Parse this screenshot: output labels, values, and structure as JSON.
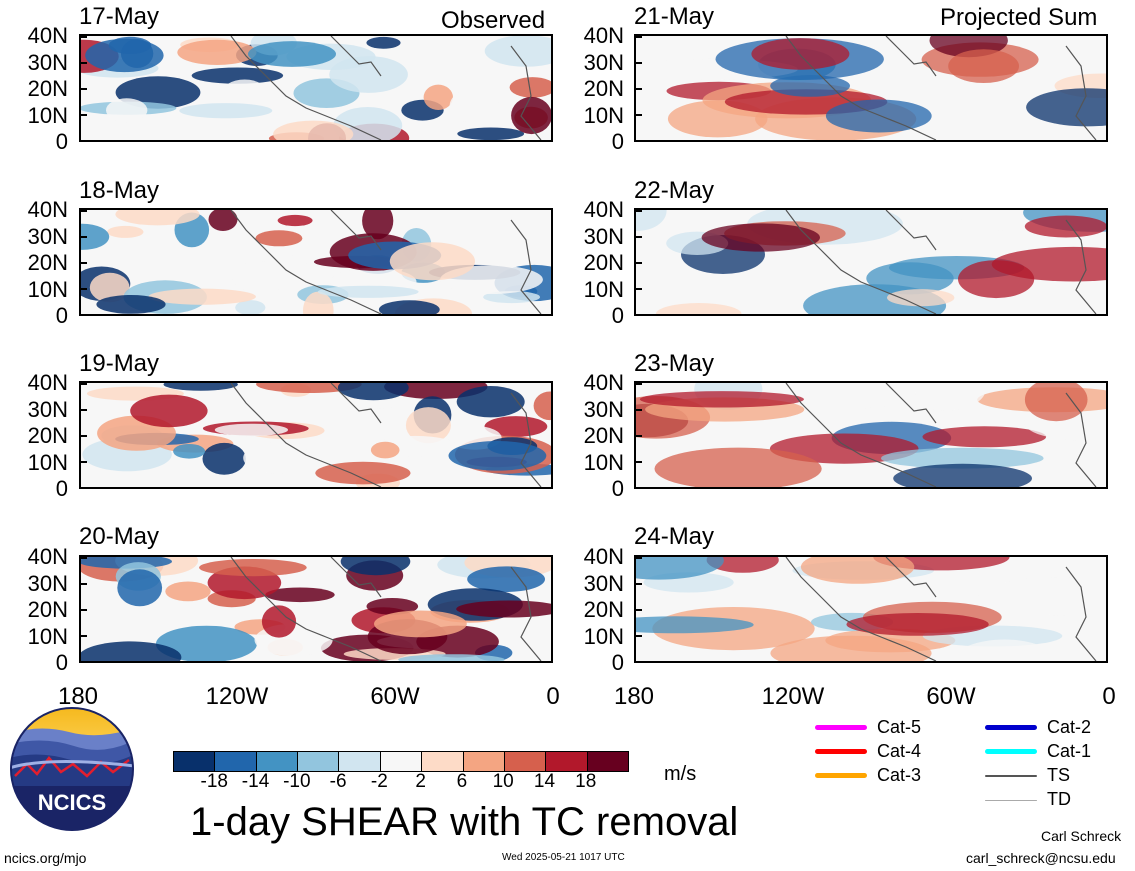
{
  "headers": {
    "left": "Observed",
    "right": "Projected Sum"
  },
  "panels_left": [
    {
      "date": "17-May"
    },
    {
      "date": "18-May"
    },
    {
      "date": "19-May"
    },
    {
      "date": "20-May"
    }
  ],
  "panels_right": [
    {
      "date": "21-May"
    },
    {
      "date": "22-May"
    },
    {
      "date": "23-May"
    },
    {
      "date": "24-May"
    }
  ],
  "lat_labels": [
    "40N",
    "30N",
    "20N",
    "10N",
    "0"
  ],
  "lon_labels": [
    "180",
    "120W",
    "60W",
    "0"
  ],
  "colorbar": {
    "colors": [
      "#08306b",
      "#2166ac",
      "#4393c3",
      "#92c5de",
      "#d1e5f0",
      "#f7f7f7",
      "#fddbc7",
      "#f4a582",
      "#d6604d",
      "#b2182b",
      "#67001f"
    ],
    "labels": [
      "-18",
      "-14",
      "-10",
      "-6",
      "-2",
      "2",
      "6",
      "10",
      "14",
      "18"
    ],
    "units": "m/s"
  },
  "title": "1-day SHEAR with TC removal",
  "legend": [
    {
      "label": "Cat-5",
      "color": "#ff00ff"
    },
    {
      "label": "Cat-4",
      "color": "#ff0000"
    },
    {
      "label": "Cat-3",
      "color": "#ffa500"
    },
    {
      "label": "Cat-2",
      "color": "#0000cd"
    },
    {
      "label": "Cat-1",
      "color": "#00ffff"
    },
    {
      "label": "TS",
      "color": "#555555"
    },
    {
      "label": "TD",
      "color": "#aaaaaa"
    }
  ],
  "logo": {
    "text": "NCICS"
  },
  "footer": {
    "url": "ncics.org/mjo",
    "timestamp": "Wed 2025-05-21 1017 UTC",
    "author": "Carl Schreck",
    "email": "carl_schreck@ncsu.edu"
  }
}
